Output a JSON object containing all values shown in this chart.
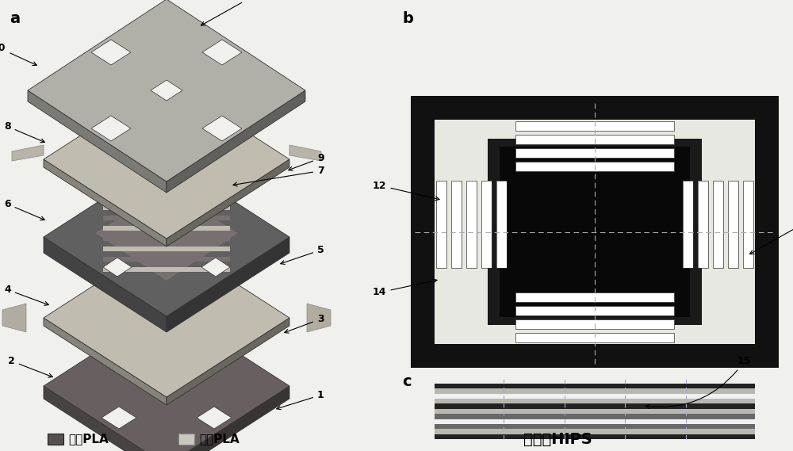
{
  "bg_color": "#f0f0ec",
  "panel_a_label": "a",
  "panel_b_label": "b",
  "panel_c_label": "c",
  "legend_dark_label": "导电PLA",
  "legend_light_label": "普通PLA",
  "legend_hips_label": "可溶性HIPS",
  "dark_col": "#555050",
  "light_col": "#c8c8bc",
  "white": "#ffffff",
  "black": "#111111",
  "mid_gray": "#888888",
  "panel_b_bg": "#ffffff",
  "panel_b_outer": "#111111",
  "panel_b_inner_bg": "#e0e0da"
}
